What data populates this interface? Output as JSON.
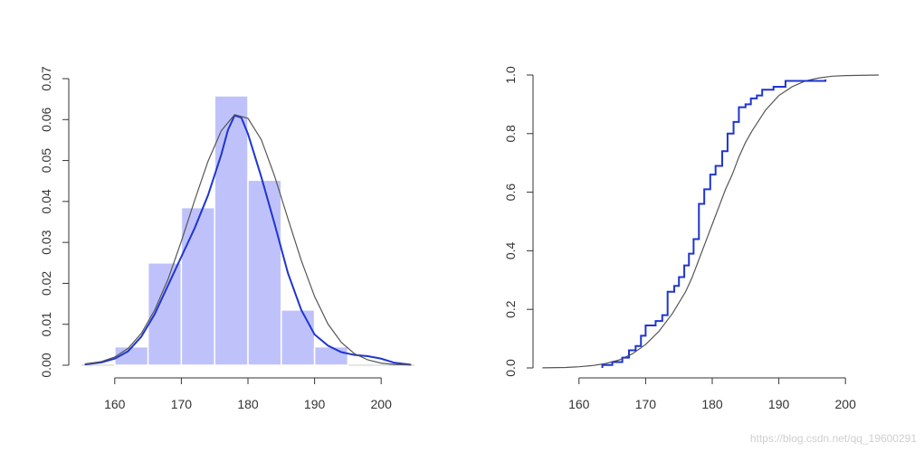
{
  "chart_data": [
    {
      "type": "histogram",
      "xlim": [
        155,
        205
      ],
      "ylim": [
        0,
        0.07
      ],
      "x_ticks": [
        160,
        170,
        180,
        190,
        200
      ],
      "y_ticks": [
        0.0,
        0.01,
        0.02,
        0.03,
        0.04,
        0.05,
        0.06,
        0.07
      ],
      "x_tick_labels": [
        "160",
        "170",
        "180",
        "190",
        "200"
      ],
      "y_tick_labels": [
        "0.00",
        "0.01",
        "0.02",
        "0.03",
        "0.04",
        "0.05",
        "0.06",
        "0.07"
      ],
      "bins": [
        {
          "from": 160,
          "to": 165,
          "density": 0.0045
        },
        {
          "from": 165,
          "to": 170,
          "density": 0.025
        },
        {
          "from": 170,
          "to": 175,
          "density": 0.0385
        },
        {
          "from": 175,
          "to": 180,
          "density": 0.0658
        },
        {
          "from": 180,
          "to": 185,
          "density": 0.0452
        },
        {
          "from": 185,
          "to": 190,
          "density": 0.0135
        },
        {
          "from": 190,
          "to": 195,
          "density": 0.0045
        }
      ],
      "series": [
        {
          "kind": "kde",
          "color": "#1f35d0",
          "points": [
            [
              155.5,
              0.0002
            ],
            [
              158,
              0.0007
            ],
            [
              160,
              0.0016
            ],
            [
              162,
              0.0034
            ],
            [
              164,
              0.007
            ],
            [
              166,
              0.0125
            ],
            [
              168,
              0.0195
            ],
            [
              170,
              0.0265
            ],
            [
              172,
              0.0335
            ],
            [
              174,
              0.0415
            ],
            [
              176,
              0.0515
            ],
            [
              177,
              0.0575
            ],
            [
              178,
              0.061
            ],
            [
              179,
              0.0605
            ],
            [
              180,
              0.0565
            ],
            [
              182,
              0.046
            ],
            [
              184,
              0.0345
            ],
            [
              186,
              0.0225
            ],
            [
              188,
              0.0135
            ],
            [
              190,
              0.0075
            ],
            [
              192,
              0.0048
            ],
            [
              194,
              0.0032
            ],
            [
              196,
              0.0025
            ],
            [
              198,
              0.0022
            ],
            [
              200,
              0.0016
            ],
            [
              202,
              0.0006
            ],
            [
              204.5,
              0.0001
            ]
          ]
        },
        {
          "kind": "normal",
          "color": "#555555",
          "points": [
            [
              155.5,
              0.0003
            ],
            [
              158,
              0.0009
            ],
            [
              160,
              0.002
            ],
            [
              162,
              0.0041
            ],
            [
              164,
              0.0078
            ],
            [
              166,
              0.0135
            ],
            [
              168,
              0.021
            ],
            [
              170,
              0.0303
            ],
            [
              172,
              0.0403
            ],
            [
              174,
              0.0498
            ],
            [
              176,
              0.0573
            ],
            [
              178,
              0.0612
            ],
            [
              180,
              0.0603
            ],
            [
              182,
              0.0551
            ],
            [
              184,
              0.0462
            ],
            [
              186,
              0.0358
            ],
            [
              188,
              0.0256
            ],
            [
              190,
              0.0168
            ],
            [
              192,
              0.0101
            ],
            [
              194,
              0.0056
            ],
            [
              196,
              0.0028
            ],
            [
              198,
              0.0013
            ],
            [
              200,
              0.0005
            ],
            [
              202,
              0.0002
            ],
            [
              204.5,
              5e-05
            ]
          ]
        }
      ]
    },
    {
      "type": "line",
      "xlim": [
        155,
        205
      ],
      "ylim": [
        0,
        1
      ],
      "x_ticks": [
        160,
        170,
        180,
        190,
        200
      ],
      "y_ticks": [
        0.0,
        0.2,
        0.4,
        0.6,
        0.8,
        1.0
      ],
      "x_tick_labels": [
        "160",
        "170",
        "180",
        "190",
        "200"
      ],
      "y_tick_labels": [
        "0.0",
        "0.2",
        "0.4",
        "0.6",
        "0.8",
        "1.0"
      ],
      "series": [
        {
          "kind": "normal-cdf",
          "color": "#555555",
          "points": [
            [
              154.5,
              0.0003
            ],
            [
              158,
              0.0015
            ],
            [
              160,
              0.004
            ],
            [
              162,
              0.008
            ],
            [
              164,
              0.015
            ],
            [
              166,
              0.027
            ],
            [
              168,
              0.048
            ],
            [
              170,
              0.08
            ],
            [
              172,
              0.125
            ],
            [
              174,
              0.185
            ],
            [
              176,
              0.26
            ],
            [
              177,
              0.31
            ],
            [
              178,
              0.37
            ],
            [
              179,
              0.43
            ],
            [
              180,
              0.49
            ],
            [
              181,
              0.55
            ],
            [
              182,
              0.61
            ],
            [
              183,
              0.66
            ],
            [
              184,
              0.72
            ],
            [
              185,
              0.77
            ],
            [
              186,
              0.81
            ],
            [
              188,
              0.88
            ],
            [
              190,
              0.93
            ],
            [
              192,
              0.96
            ],
            [
              194,
              0.98
            ],
            [
              196,
              0.99
            ],
            [
              198,
              0.996
            ],
            [
              200,
              0.998
            ],
            [
              205,
              1.0
            ]
          ]
        },
        {
          "kind": "ecdf-step",
          "color": "#1f35d0",
          "steps": [
            [
              163.5,
              0.01
            ],
            [
              165,
              0.02
            ],
            [
              166.5,
              0.035
            ],
            [
              167.5,
              0.06
            ],
            [
              168.5,
              0.075
            ],
            [
              169.3,
              0.11
            ],
            [
              170,
              0.145
            ],
            [
              171.5,
              0.16
            ],
            [
              172.5,
              0.18
            ],
            [
              173.3,
              0.26
            ],
            [
              174.3,
              0.28
            ],
            [
              175,
              0.31
            ],
            [
              175.8,
              0.35
            ],
            [
              176.5,
              0.39
            ],
            [
              177.2,
              0.44
            ],
            [
              178,
              0.56
            ],
            [
              178.8,
              0.61
            ],
            [
              179.7,
              0.66
            ],
            [
              180.5,
              0.69
            ],
            [
              181.5,
              0.74
            ],
            [
              182.3,
              0.8
            ],
            [
              183.2,
              0.84
            ],
            [
              184,
              0.89
            ],
            [
              185,
              0.9
            ],
            [
              185.8,
              0.92
            ],
            [
              186.7,
              0.93
            ],
            [
              187.5,
              0.95
            ],
            [
              189.2,
              0.96
            ],
            [
              191,
              0.98
            ],
            [
              197,
              0.985
            ]
          ],
          "x_end": 197
        }
      ]
    }
  ],
  "watermark": "https://blog.csdn.net/qq_19600291"
}
